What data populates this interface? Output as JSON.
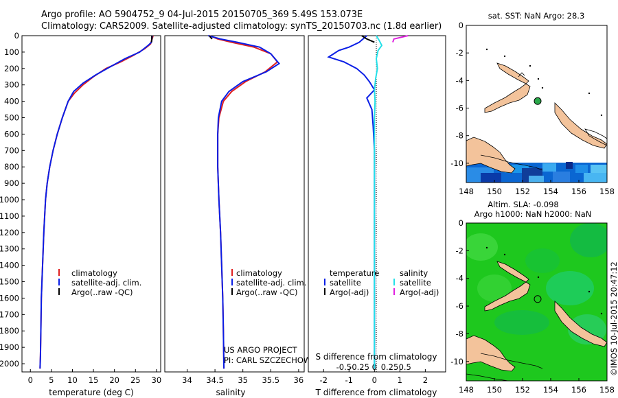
{
  "figure": {
    "title_line1": "Argo profile: AO 5904752_9 04-Jul-2015 20150705_369 5.49S 153.073E",
    "title_line2": "Climatology: CARS2009. Satellite-adjusted climatology: synTS_20150703.nc (1.8d earlier)",
    "project_line1": "US ARGO PROJECT",
    "project_line2": "PI: CARL SZCZECHOWSKI",
    "credit": "©IMOS 10-Jul-2015 20:47:12"
  },
  "colors": {
    "climatology": "#e02020",
    "satellite": "#0a1ee6",
    "argo": "#000000",
    "salinity_satellite": "#22e0e8",
    "salinity_argo": "#e020e0",
    "land": "#f3c39b",
    "sla_green": "#1ec81e"
  },
  "chart_data": [
    {
      "type": "line",
      "id": "temperature",
      "xlabel": "temperature (deg C)",
      "ylabel": "",
      "xlim": [
        -2,
        31
      ],
      "ylim": [
        0,
        2050
      ],
      "x_ticks": [
        "0",
        "5",
        "10",
        "15",
        "20",
        "25",
        "30"
      ],
      "y_ticks": [
        "0",
        "100",
        "200",
        "300",
        "400",
        "500",
        "600",
        "700",
        "800",
        "900",
        "1000",
        "1100",
        "1200",
        "1300",
        "1400",
        "1500",
        "1600",
        "1700",
        "1800",
        "1900",
        "2000"
      ],
      "legend": [
        "climatology",
        "satellite-adj. clim.",
        "Argo(..raw -QC)"
      ],
      "series": [
        {
          "name": "climatology",
          "x": [
            29.2,
            28.6,
            27.2,
            24.5,
            21.5,
            18.0,
            15.0,
            12.5,
            10.5,
            9.0,
            7.6,
            6.4,
            5.4,
            4.6,
            4.0,
            3.6,
            3.2,
            2.9,
            2.6,
            2.5,
            2.4,
            2.3
          ],
          "depth": [
            0,
            50,
            80,
            120,
            160,
            200,
            250,
            300,
            350,
            400,
            500,
            600,
            700,
            800,
            900,
            1000,
            1200,
            1400,
            1600,
            1800,
            1950,
            2030
          ]
        },
        {
          "name": "satellite-adj. clim.",
          "x": [
            29.0,
            28.8,
            28.0,
            26.0,
            22.5,
            19.0,
            15.5,
            12.5,
            10.3,
            9.0,
            7.6,
            6.4,
            5.4,
            4.6,
            4.0,
            3.6,
            3.2,
            2.9,
            2.6,
            2.5,
            2.4,
            2.3
          ],
          "depth": [
            0,
            40,
            60,
            100,
            140,
            190,
            240,
            290,
            340,
            400,
            500,
            600,
            700,
            800,
            900,
            1000,
            1200,
            1400,
            1600,
            1800,
            1950,
            2030
          ]
        },
        {
          "name": "Argo(..raw -QC)",
          "x": [
            28.9,
            28.9,
            28.8
          ],
          "depth": [
            0,
            20,
            40
          ]
        }
      ]
    },
    {
      "type": "line",
      "id": "salinity",
      "xlabel": "salinity",
      "ylabel": "",
      "xlim": [
        33.6,
        36.1
      ],
      "ylim": [
        0,
        2050
      ],
      "x_ticks": [
        "34",
        "34.5",
        "35",
        "35.5",
        "36"
      ],
      "legend": [
        "climatology",
        "satellite-adj. clim.",
        "Argo(..raw -QC)"
      ],
      "series": [
        {
          "name": "climatology",
          "x": [
            34.4,
            34.55,
            34.8,
            35.2,
            35.5,
            35.62,
            35.4,
            35.05,
            34.8,
            34.65,
            34.57,
            34.55,
            34.55,
            34.55,
            34.57,
            34.6,
            34.62,
            34.64,
            34.65,
            34.66
          ],
          "depth": [
            0,
            20,
            40,
            70,
            110,
            160,
            220,
            280,
            340,
            400,
            500,
            600,
            700,
            800,
            1000,
            1200,
            1400,
            1600,
            1800,
            2030
          ]
        },
        {
          "name": "satellite-adj. clim.",
          "x": [
            34.38,
            34.6,
            34.9,
            35.3,
            35.5,
            35.65,
            35.42,
            35.0,
            34.75,
            34.62,
            34.56,
            34.55,
            34.55,
            34.55,
            34.57,
            34.6,
            34.62,
            34.64,
            34.65,
            34.66
          ],
          "depth": [
            0,
            20,
            40,
            70,
            110,
            170,
            220,
            280,
            340,
            400,
            500,
            600,
            700,
            800,
            1000,
            1200,
            1400,
            1600,
            1800,
            2030
          ]
        },
        {
          "name": "Argo(..raw -QC)",
          "x": [
            34.4,
            34.42,
            34.45
          ],
          "depth": [
            0,
            10,
            20
          ]
        }
      ]
    },
    {
      "type": "line",
      "id": "difference",
      "xlabel": "T difference from climatology",
      "xlabel_top": "S difference from climatology",
      "xlim": [
        -2.6,
        2.8
      ],
      "ylim": [
        0,
        2050
      ],
      "x_ticks_T": [
        "-2",
        "-1",
        "0",
        "1",
        "2"
      ],
      "x_ticks_S": [
        "-0.5",
        "-0.25",
        "0",
        "0.25",
        "0.5"
      ],
      "legend_headers": [
        "temperature",
        "salinity"
      ],
      "legend": [
        "satellite",
        "Argo(-adj)",
        "satellite",
        "Argo(-adj)"
      ],
      "series": [
        {
          "name": "T satellite",
          "x": [
            -0.3,
            -0.6,
            -1.0,
            -1.4,
            -1.8,
            -1.2,
            -0.7,
            -0.4,
            -0.2,
            0,
            -0.3,
            -0.1,
            -0.05,
            0,
            0,
            0
          ],
          "depth": [
            0,
            40,
            70,
            90,
            130,
            160,
            200,
            240,
            280,
            330,
            380,
            450,
            550,
            700,
            1000,
            2030
          ]
        },
        {
          "name": "T Argo(-adj)",
          "x": [
            -0.5,
            -0.3,
            0
          ],
          "depth": [
            0,
            20,
            40
          ]
        },
        {
          "name": "S satellite",
          "x": [
            0.03,
            0.08,
            0.12,
            0.06,
            0.03,
            0.05,
            0.02,
            0,
            0.01,
            0,
            0,
            0
          ],
          "depth": [
            0,
            30,
            60,
            90,
            140,
            200,
            260,
            330,
            400,
            500,
            1000,
            2030
          ]
        },
        {
          "name": "S Argo(-adj)",
          "x": [
            0.55,
            0.32,
            0.3
          ],
          "depth": [
            0,
            20,
            40
          ]
        }
      ]
    },
    {
      "type": "heatmap",
      "id": "sst_map",
      "title": "sat. SST: NaN Argo: 28.3",
      "xlim": [
        148,
        158
      ],
      "ylim": [
        -11.4,
        0
      ],
      "x_ticks": [
        "148",
        "150",
        "152",
        "154",
        "156",
        "158"
      ],
      "y_ticks": [
        "0",
        "-2",
        "-4",
        "-6",
        "-8",
        "-10"
      ],
      "argo_position": {
        "lon": 153.073,
        "lat": -5.49
      }
    },
    {
      "type": "heatmap",
      "id": "sla_map",
      "title_line1": "Altim. SLA: -0.098",
      "title_line2": "Argo h1000: NaN h2000: NaN",
      "xlim": [
        148,
        158
      ],
      "ylim": [
        -11.4,
        0
      ],
      "x_ticks": [
        "148",
        "150",
        "152",
        "154",
        "156",
        "158"
      ],
      "y_ticks": [
        "0",
        "-2",
        "-4",
        "-6",
        "-8",
        "-10"
      ],
      "argo_position": {
        "lon": 153.073,
        "lat": -5.49
      }
    }
  ]
}
